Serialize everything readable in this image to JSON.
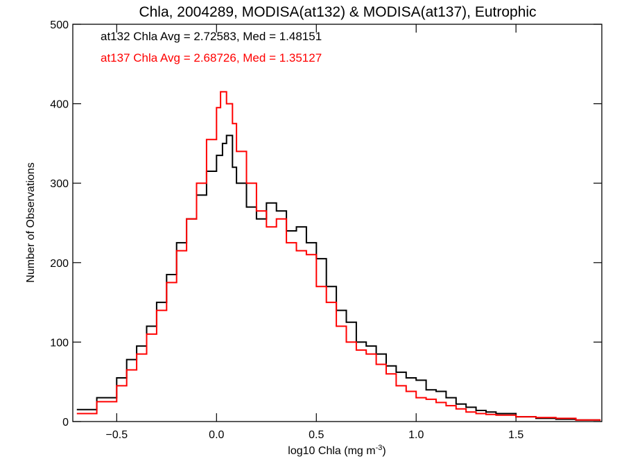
{
  "chart_data": {
    "type": "line",
    "title": "Chla, 2004289, MODISA(at132) & MODISA(at137), Eutrophic",
    "xlabel": "log10 Chla (mg m",
    "xlabel_sup": "-3",
    "xlabel_close": ")",
    "ylabel": "Number of Observations",
    "xlim": [
      -0.72,
      1.93
    ],
    "ylim": [
      0,
      500
    ],
    "x_ticks": [
      -0.5,
      0.0,
      0.5,
      1.0,
      1.5
    ],
    "x_tick_labels": [
      "−0.5",
      "0.0",
      "0.5",
      "1.0",
      "1.5"
    ],
    "y_ticks": [
      0,
      100,
      200,
      300,
      400,
      500
    ],
    "y_tick_labels": [
      "0",
      "100",
      "200",
      "300",
      "400",
      "500"
    ],
    "annotations": [
      {
        "text": "at132 Chla Avg = 2.72583, Med = 1.48151",
        "color": "#000000"
      },
      {
        "text": "at137 Chla Avg = 2.68726, Med = 1.35127",
        "color": "#ff0000"
      }
    ],
    "series": [
      {
        "color": "#000000",
        "x": [
          -0.7,
          -0.6,
          -0.5,
          -0.45,
          -0.4,
          -0.35,
          -0.3,
          -0.25,
          -0.2,
          -0.15,
          -0.1,
          -0.05,
          0.0,
          0.03,
          0.05,
          0.08,
          0.1,
          0.15,
          0.2,
          0.25,
          0.3,
          0.35,
          0.4,
          0.45,
          0.5,
          0.55,
          0.6,
          0.65,
          0.7,
          0.75,
          0.8,
          0.85,
          0.9,
          0.95,
          1.0,
          1.05,
          1.1,
          1.15,
          1.2,
          1.25,
          1.3,
          1.35,
          1.4,
          1.5,
          1.6,
          1.7,
          1.8,
          1.92
        ],
        "y": [
          15,
          30,
          55,
          78,
          95,
          120,
          150,
          185,
          225,
          255,
          285,
          315,
          335,
          350,
          360,
          320,
          300,
          270,
          255,
          275,
          265,
          240,
          245,
          225,
          205,
          170,
          140,
          125,
          100,
          95,
          85,
          70,
          62,
          55,
          52,
          40,
          38,
          30,
          22,
          18,
          14,
          12,
          10,
          6,
          4,
          3,
          2,
          1
        ]
      },
      {
        "color": "#ff0000",
        "x": [
          -0.7,
          -0.6,
          -0.5,
          -0.45,
          -0.4,
          -0.35,
          -0.3,
          -0.25,
          -0.2,
          -0.15,
          -0.1,
          -0.05,
          0.0,
          0.02,
          0.05,
          0.08,
          0.1,
          0.15,
          0.2,
          0.25,
          0.3,
          0.35,
          0.4,
          0.45,
          0.5,
          0.55,
          0.6,
          0.65,
          0.7,
          0.75,
          0.8,
          0.85,
          0.9,
          0.95,
          1.0,
          1.05,
          1.1,
          1.15,
          1.2,
          1.25,
          1.3,
          1.35,
          1.4,
          1.5,
          1.6,
          1.7,
          1.8,
          1.92
        ],
        "y": [
          10,
          25,
          45,
          65,
          85,
          110,
          140,
          175,
          215,
          255,
          300,
          355,
          395,
          415,
          400,
          375,
          340,
          300,
          265,
          245,
          255,
          225,
          215,
          210,
          170,
          150,
          120,
          100,
          90,
          85,
          72,
          60,
          45,
          38,
          30,
          28,
          24,
          20,
          16,
          12,
          10,
          9,
          8,
          6,
          5,
          4,
          2,
          1
        ]
      }
    ]
  }
}
